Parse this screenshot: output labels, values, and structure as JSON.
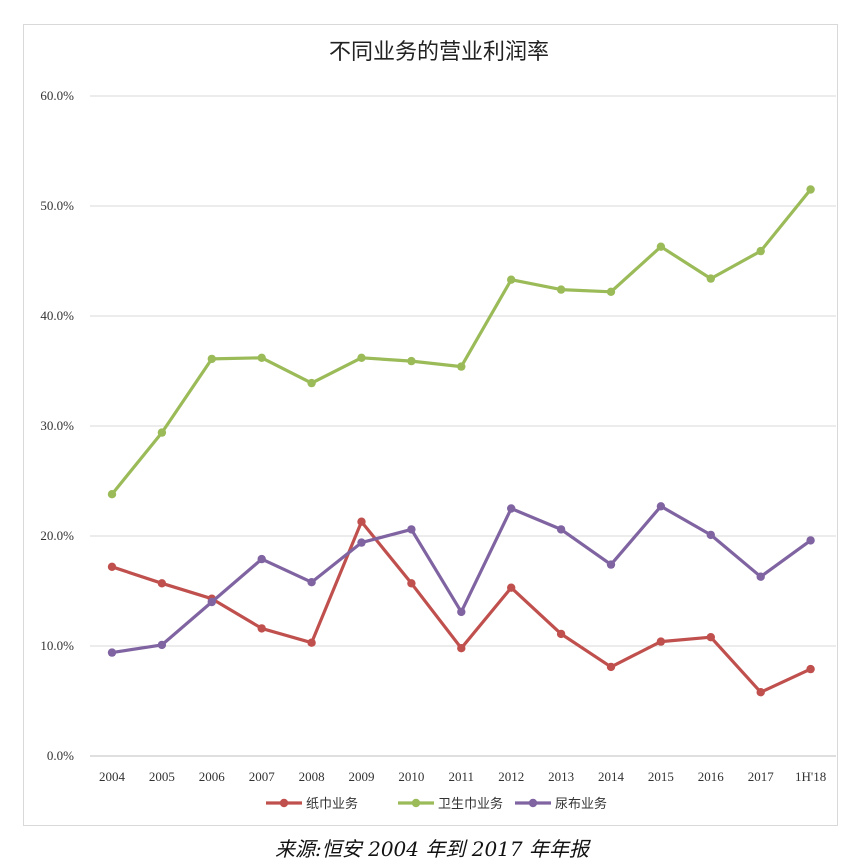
{
  "chart_data": {
    "type": "line",
    "title": "不同业务的营业利润率",
    "categories": [
      "2004",
      "2005",
      "2006",
      "2007",
      "2008",
      "2009",
      "2010",
      "2011",
      "2012",
      "2013",
      "2014",
      "2015",
      "2016",
      "2017",
      "1H'18"
    ],
    "ylim": [
      0,
      60
    ],
    "yticks": [
      "0.0%",
      "10.0%",
      "20.0%",
      "30.0%",
      "40.0%",
      "50.0%",
      "60.0%"
    ],
    "grid": true,
    "legend_position": "bottom",
    "series": [
      {
        "name": "纸巾业务",
        "color": "#c0504d",
        "values": [
          17.2,
          15.7,
          14.3,
          11.6,
          10.3,
          21.3,
          15.7,
          9.8,
          15.3,
          11.1,
          8.1,
          10.4,
          10.8,
          5.8,
          7.9
        ]
      },
      {
        "name": "卫生巾业务",
        "color": "#9bbb59",
        "values": [
          23.8,
          29.4,
          36.1,
          36.2,
          33.9,
          36.2,
          35.9,
          35.4,
          43.3,
          42.4,
          42.2,
          46.3,
          43.4,
          45.9,
          51.5
        ]
      },
      {
        "name": "尿布业务",
        "color": "#8064a2",
        "values": [
          9.4,
          10.1,
          14.0,
          17.9,
          15.8,
          19.4,
          20.6,
          13.1,
          22.5,
          20.6,
          17.4,
          22.7,
          20.1,
          16.3,
          19.6
        ]
      }
    ]
  },
  "source_note": "来源:恒安 2004 年到 2017 年年报"
}
